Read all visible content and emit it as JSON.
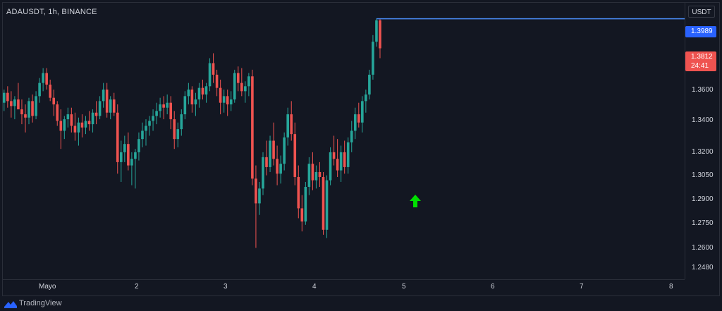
{
  "header": {
    "symbol_label": "ADAUSDT, 1h, BINANCE"
  },
  "y_axis": {
    "currency": "USDT",
    "ticks": [
      "1.3600",
      "1.3400",
      "1.3200",
      "1.3050",
      "1.2900",
      "1.2750",
      "1.2600",
      "1.2480"
    ],
    "last_price_tag": "1.3989",
    "current_price_tag": "1.3812",
    "countdown_tag": "24:41"
  },
  "x_axis": {
    "ticks": [
      "Mayo",
      "2",
      "3",
      "4",
      "5",
      "6",
      "7",
      "8"
    ]
  },
  "footer": {
    "brand": "TradingView"
  },
  "colors": {
    "bg": "#131722",
    "up": "#26a69a",
    "down": "#ef5350",
    "level": "#4a8cf7",
    "signal": "#00e000"
  },
  "icons": {
    "signal": "up-arrow-icon",
    "brand": "tradingview-logo-icon"
  },
  "chart_data": {
    "type": "candlestick",
    "series": [
      {
        "name": "ADAUSDT",
        "values": [
          [
            1.348,
            1.356,
            1.343,
            1.354
          ],
          [
            1.354,
            1.358,
            1.345,
            1.349
          ],
          [
            1.349,
            1.355,
            1.339,
            1.346
          ],
          [
            1.346,
            1.352,
            1.338,
            1.35
          ],
          [
            1.35,
            1.36,
            1.345,
            1.344
          ],
          [
            1.344,
            1.35,
            1.335,
            1.341
          ],
          [
            1.341,
            1.347,
            1.33,
            1.339
          ],
          [
            1.339,
            1.351,
            1.335,
            1.349
          ],
          [
            1.349,
            1.353,
            1.336,
            1.34
          ],
          [
            1.34,
            1.355,
            1.338,
            1.352
          ],
          [
            1.352,
            1.363,
            1.348,
            1.36
          ],
          [
            1.36,
            1.369,
            1.355,
            1.366
          ],
          [
            1.366,
            1.369,
            1.356,
            1.359
          ],
          [
            1.359,
            1.362,
            1.349,
            1.351
          ],
          [
            1.351,
            1.356,
            1.34,
            1.347
          ],
          [
            1.347,
            1.349,
            1.334,
            1.337
          ],
          [
            1.337,
            1.344,
            1.32,
            1.331
          ],
          [
            1.331,
            1.34,
            1.326,
            1.338
          ],
          [
            1.338,
            1.345,
            1.333,
            1.341
          ],
          [
            1.341,
            1.345,
            1.33,
            1.334
          ],
          [
            1.334,
            1.342,
            1.325,
            1.33
          ],
          [
            1.33,
            1.339,
            1.322,
            1.336
          ],
          [
            1.336,
            1.341,
            1.327,
            1.333
          ],
          [
            1.333,
            1.34,
            1.329,
            1.337
          ],
          [
            1.337,
            1.343,
            1.331,
            1.335
          ],
          [
            1.335,
            1.344,
            1.33,
            1.342
          ],
          [
            1.342,
            1.349,
            1.335,
            1.34
          ],
          [
            1.34,
            1.352,
            1.338,
            1.349
          ],
          [
            1.349,
            1.36,
            1.345,
            1.356
          ],
          [
            1.356,
            1.36,
            1.339,
            1.342
          ],
          [
            1.342,
            1.352,
            1.338,
            1.35
          ],
          [
            1.35,
            1.354,
            1.34,
            1.342
          ],
          [
            1.342,
            1.347,
            1.305,
            1.312
          ],
          [
            1.312,
            1.325,
            1.3,
            1.318
          ],
          [
            1.318,
            1.328,
            1.312,
            1.323
          ],
          [
            1.323,
            1.33,
            1.307,
            1.31
          ],
          [
            1.31,
            1.318,
            1.298,
            1.314
          ],
          [
            1.314,
            1.32,
            1.296,
            1.318
          ],
          [
            1.318,
            1.33,
            1.313,
            1.326
          ],
          [
            1.326,
            1.336,
            1.321,
            1.331
          ],
          [
            1.331,
            1.338,
            1.322,
            1.334
          ],
          [
            1.334,
            1.34,
            1.328,
            1.337
          ],
          [
            1.337,
            1.344,
            1.331,
            1.34
          ],
          [
            1.34,
            1.348,
            1.335,
            1.343
          ],
          [
            1.343,
            1.351,
            1.339,
            1.347
          ],
          [
            1.347,
            1.352,
            1.338,
            1.345
          ],
          [
            1.345,
            1.353,
            1.341,
            1.348
          ],
          [
            1.348,
            1.352,
            1.332,
            1.338
          ],
          [
            1.338,
            1.343,
            1.32,
            1.326
          ],
          [
            1.326,
            1.336,
            1.321,
            1.332
          ],
          [
            1.332,
            1.344,
            1.328,
            1.341
          ],
          [
            1.341,
            1.355,
            1.338,
            1.352
          ],
          [
            1.352,
            1.36,
            1.347,
            1.356
          ],
          [
            1.356,
            1.358,
            1.342,
            1.347
          ],
          [
            1.347,
            1.354,
            1.34,
            1.35
          ],
          [
            1.35,
            1.36,
            1.345,
            1.357
          ],
          [
            1.357,
            1.362,
            1.35,
            1.353
          ],
          [
            1.353,
            1.36,
            1.348,
            1.358
          ],
          [
            1.358,
            1.375,
            1.355,
            1.372
          ],
          [
            1.372,
            1.378,
            1.36,
            1.365
          ],
          [
            1.365,
            1.368,
            1.352,
            1.357
          ],
          [
            1.357,
            1.362,
            1.341,
            1.348
          ],
          [
            1.348,
            1.356,
            1.342,
            1.352
          ],
          [
            1.352,
            1.356,
            1.34,
            1.347
          ],
          [
            1.347,
            1.355,
            1.343,
            1.35
          ],
          [
            1.35,
            1.368,
            1.348,
            1.366
          ],
          [
            1.366,
            1.37,
            1.355,
            1.36
          ],
          [
            1.36,
            1.369,
            1.352,
            1.355
          ],
          [
            1.355,
            1.361,
            1.348,
            1.358
          ],
          [
            1.358,
            1.366,
            1.352,
            1.364
          ],
          [
            1.364,
            1.368,
            1.298,
            1.302
          ],
          [
            1.302,
            1.31,
            1.26,
            1.287
          ],
          [
            1.287,
            1.3,
            1.28,
            1.296
          ],
          [
            1.296,
            1.318,
            1.292,
            1.315
          ],
          [
            1.315,
            1.325,
            1.304,
            1.309
          ],
          [
            1.309,
            1.328,
            1.306,
            1.325
          ],
          [
            1.325,
            1.336,
            1.31,
            1.314
          ],
          [
            1.314,
            1.322,
            1.298,
            1.305
          ],
          [
            1.305,
            1.316,
            1.299,
            1.311
          ],
          [
            1.311,
            1.33,
            1.307,
            1.327
          ],
          [
            1.327,
            1.345,
            1.322,
            1.341
          ],
          [
            1.341,
            1.349,
            1.325,
            1.329
          ],
          [
            1.329,
            1.336,
            1.298,
            1.303
          ],
          [
            1.303,
            1.31,
            1.278,
            1.284
          ],
          [
            1.284,
            1.292,
            1.27,
            1.276
          ],
          [
            1.276,
            1.3,
            1.274,
            1.297
          ],
          [
            1.297,
            1.315,
            1.292,
            1.311
          ],
          [
            1.311,
            1.318,
            1.295,
            1.301
          ],
          [
            1.301,
            1.31,
            1.296,
            1.306
          ],
          [
            1.306,
            1.312,
            1.297,
            1.303
          ],
          [
            1.303,
            1.306,
            1.268,
            1.271
          ],
          [
            1.271,
            1.304,
            1.266,
            1.301
          ],
          [
            1.301,
            1.321,
            1.298,
            1.318
          ],
          [
            1.318,
            1.328,
            1.31,
            1.314
          ],
          [
            1.314,
            1.326,
            1.303,
            1.307
          ],
          [
            1.307,
            1.322,
            1.3,
            1.318
          ],
          [
            1.318,
            1.325,
            1.305,
            1.309
          ],
          [
            1.309,
            1.327,
            1.305,
            1.324
          ],
          [
            1.324,
            1.337,
            1.318,
            1.331
          ],
          [
            1.331,
            1.345,
            1.326,
            1.341
          ],
          [
            1.341,
            1.348,
            1.333,
            1.336
          ],
          [
            1.336,
            1.352,
            1.33,
            1.349
          ],
          [
            1.349,
            1.356,
            1.342,
            1.353
          ],
          [
            1.353,
            1.368,
            1.35,
            1.365
          ],
          [
            1.365,
            1.389,
            1.362,
            1.385
          ],
          [
            1.385,
            1.399,
            1.382,
            1.398
          ],
          [
            1.398,
            1.399,
            1.375,
            1.381
          ]
        ]
      }
    ],
    "ylim": [
      1.241,
      1.409
    ],
    "x_labels": [
      "Mayo",
      "2",
      "3",
      "4",
      "5",
      "6",
      "7",
      "8"
    ],
    "last_price": 1.3989,
    "current_price": 1.3812,
    "grid": false
  }
}
